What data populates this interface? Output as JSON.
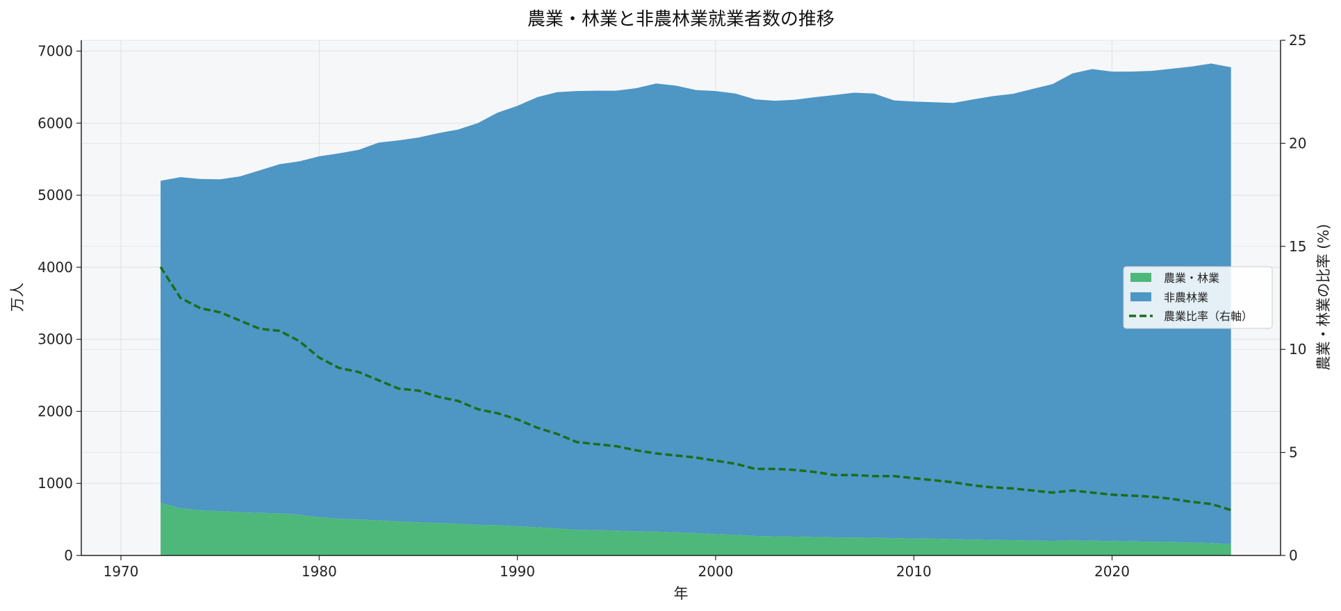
{
  "chart_data": {
    "type": "area",
    "title": "農業・林業と非農林業就業者数の推移",
    "xlabel": "年",
    "ylabel": "万人",
    "y2label": "農業・林業の比率 (%)",
    "xlim": [
      1968,
      2028.5
    ],
    "ylim": [
      0,
      7150
    ],
    "y2lim": [
      0,
      25
    ],
    "xticks": [
      1970,
      1980,
      1990,
      2000,
      2010,
      2020
    ],
    "yticks": [
      0,
      1000,
      2000,
      3000,
      4000,
      5000,
      6000,
      7000
    ],
    "y2ticks": [
      0,
      5,
      10,
      15,
      20,
      25
    ],
    "grid": true,
    "legend_position": "center-right",
    "stacked": true,
    "x": [
      1972,
      1973,
      1974,
      1975,
      1976,
      1977,
      1978,
      1979,
      1980,
      1981,
      1982,
      1983,
      1984,
      1985,
      1986,
      1987,
      1988,
      1989,
      1990,
      1991,
      1992,
      1993,
      1994,
      1995,
      1996,
      1997,
      1998,
      1999,
      2000,
      2001,
      2002,
      2003,
      2004,
      2005,
      2006,
      2007,
      2008,
      2009,
      2010,
      2011,
      2012,
      2013,
      2014,
      2015,
      2016,
      2017,
      2018,
      2019,
      2020,
      2021,
      2022,
      2023,
      2024,
      2025,
      2026
    ],
    "series": [
      {
        "name": "農業・林業",
        "kind": "area",
        "axis": "left",
        "color": "#4db87a",
        "values": [
          730,
          655,
          625,
          615,
          600,
          590,
          585,
          565,
          530,
          510,
          500,
          485,
          470,
          460,
          450,
          440,
          425,
          420,
          405,
          390,
          375,
          355,
          350,
          345,
          335,
          330,
          320,
          310,
          295,
          285,
          270,
          265,
          260,
          255,
          250,
          248,
          245,
          240,
          235,
          232,
          225,
          220,
          215,
          212,
          205,
          202,
          210,
          205,
          200,
          195,
          190,
          185,
          180,
          172,
          155
        ]
      },
      {
        "name": "非農林業",
        "kind": "area",
        "axis": "left",
        "color": "#4e96c4",
        "values": [
          4470,
          4595,
          4600,
          4605,
          4660,
          4755,
          4845,
          4905,
          5010,
          5070,
          5130,
          5245,
          5290,
          5340,
          5410,
          5470,
          5575,
          5725,
          5835,
          5970,
          6055,
          6090,
          6100,
          6105,
          6150,
          6220,
          6200,
          6150,
          6150,
          6125,
          6060,
          6045,
          6065,
          6105,
          6140,
          6175,
          6165,
          6075,
          6065,
          6058,
          6055,
          6110,
          6160,
          6195,
          6270,
          6340,
          6480,
          6545,
          6515,
          6520,
          6535,
          6570,
          6605,
          6655,
          6620
        ]
      },
      {
        "name": "農業比率（右軸）",
        "kind": "line",
        "axis": "right",
        "color": "#1a6e1a",
        "dash": "dashed",
        "values": [
          14.0,
          12.5,
          12.0,
          11.8,
          11.4,
          11.0,
          10.9,
          10.4,
          9.6,
          9.1,
          8.9,
          8.5,
          8.1,
          8.0,
          7.7,
          7.5,
          7.1,
          6.9,
          6.6,
          6.2,
          5.9,
          5.5,
          5.4,
          5.3,
          5.1,
          4.95,
          4.85,
          4.75,
          4.6,
          4.45,
          4.2,
          4.2,
          4.15,
          4.05,
          3.9,
          3.9,
          3.85,
          3.85,
          3.75,
          3.65,
          3.55,
          3.4,
          3.3,
          3.25,
          3.15,
          3.05,
          3.15,
          3.05,
          2.95,
          2.9,
          2.85,
          2.75,
          2.6,
          2.5,
          2.2
        ]
      }
    ]
  }
}
